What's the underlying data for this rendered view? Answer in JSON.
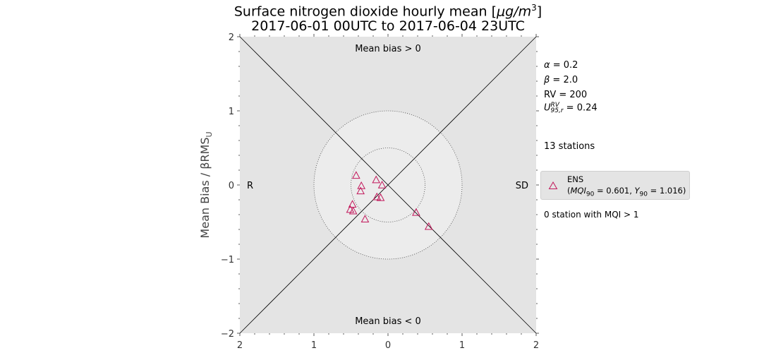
{
  "title": {
    "line1_prefix": "Surface nitrogen dioxide hourly mean [",
    "line1_unit": "μg/m",
    "line1_sup": "3",
    "line1_suffix": "]",
    "line2": "2017-06-01 00UTC to 2017-06-04 23UTC"
  },
  "y_label": "Mean Bias / βRMS",
  "y_label_sub": "U",
  "regions": {
    "top": "Mean bias > 0",
    "bottom": "Mean bias < 0",
    "left": "R",
    "right": "SD"
  },
  "params": {
    "alpha_sym": "α",
    "alpha_val": " = 0.2",
    "beta_sym": "β",
    "beta_val": " = 2.0",
    "rv": "RV = 200",
    "u_sym": "U",
    "u_sup": "RV",
    "u_sub": "95,r",
    "u_val": " = 0.24",
    "stations": "13 stations",
    "mqi_note": "0 station with MQI > 1"
  },
  "legend": {
    "name": "ENS",
    "detail_prefix": "(",
    "mqi_sym": "MQI",
    "mqi_sub": "90",
    "mqi_val": " = 0.601, ",
    "y_sym": "Y",
    "y_sub": "90",
    "y_val": " = 1.016)"
  },
  "colors": {
    "marker": "#c2185b",
    "outer_bg": "#e4e4e4",
    "inner_bg": "#ececec"
  },
  "chart_data": {
    "type": "scatter",
    "x_tick_labels": [
      "2",
      "1",
      "0",
      "1",
      "2"
    ],
    "x_ticks": [
      -2,
      -1,
      0,
      1,
      2
    ],
    "y_ticks": [
      -2,
      -1,
      0,
      1,
      2
    ],
    "y_tick_labels": [
      "−2",
      "−1",
      "0",
      "1",
      "2"
    ],
    "xlim": [
      -2,
      2
    ],
    "ylim": [
      -2,
      2
    ],
    "circles": [
      0.5,
      1.0
    ],
    "grid": false,
    "legend_placement": "right",
    "series": [
      {
        "name": "ENS",
        "marker": "triangle",
        "points": [
          {
            "x": -0.43,
            "y": 0.13
          },
          {
            "x": -0.16,
            "y": 0.07
          },
          {
            "x": -0.36,
            "y": -0.01
          },
          {
            "x": -0.08,
            "y": 0.0
          },
          {
            "x": -0.37,
            "y": -0.08
          },
          {
            "x": -0.15,
            "y": -0.16
          },
          {
            "x": -0.1,
            "y": -0.17
          },
          {
            "x": -0.48,
            "y": -0.26
          },
          {
            "x": -0.51,
            "y": -0.33
          },
          {
            "x": -0.47,
            "y": -0.35
          },
          {
            "x": 0.38,
            "y": -0.37
          },
          {
            "x": -0.31,
            "y": -0.46
          },
          {
            "x": 0.55,
            "y": -0.56
          }
        ]
      }
    ]
  }
}
